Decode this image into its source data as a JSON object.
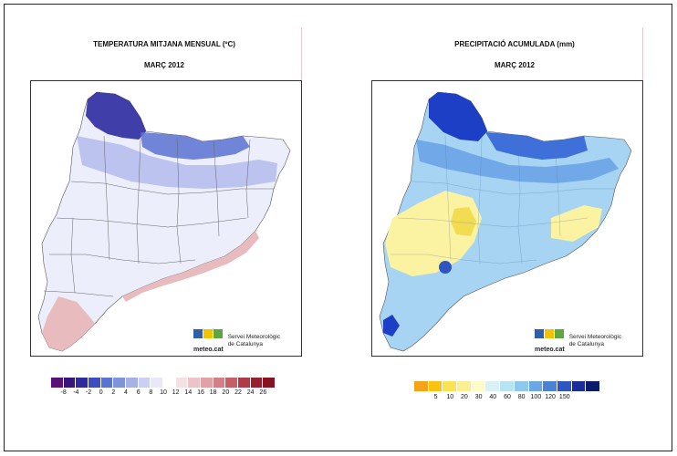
{
  "panels": [
    {
      "id": "temperature",
      "title": "TEMPERATURA MITJANA MENSUAL (ºC)",
      "subtitle": "MARÇ 2012",
      "legend_colors": [
        "#5b1076",
        "#35147f",
        "#2d2aa0",
        "#3c4cc1",
        "#5a72d1",
        "#7f93dc",
        "#a7b1e8",
        "#cbd0f3",
        "#e7e8fa",
        "#ffffff",
        "#f5e1e3",
        "#ecc3c6",
        "#e1a2a6",
        "#d47f86",
        "#c55e67",
        "#b03a47",
        "#9a1f2e",
        "#861320"
      ],
      "legend_ticks": [
        "-8",
        "-4",
        "-2",
        "0",
        "2",
        "4",
        "6",
        "8",
        "10",
        "12",
        "14",
        "16",
        "18",
        "20",
        "22",
        "24",
        "26"
      ],
      "map_colors": {
        "cold": "#3c3fb0",
        "mid": "#8088d4",
        "light": "#cfd3f1",
        "pale": "#eceefb",
        "warm": "#e8bcbf"
      }
    },
    {
      "id": "precipitation",
      "title": "PRECIPITACIÓ ACUMULADA (mm)",
      "subtitle": "MARÇ 2012",
      "legend_colors": [
        "#f7a21b",
        "#f9c411",
        "#fbe253",
        "#fbf08f",
        "#fdfcc7",
        "#d9f1f6",
        "#b7e3f3",
        "#8ec8ee",
        "#6aa7e4",
        "#4b82d6",
        "#2f55c3",
        "#1b2c9c",
        "#0c1a6b"
      ],
      "legend_ticks": [
        "5",
        "10",
        "20",
        "30",
        "40",
        "60",
        "80",
        "100",
        "120",
        "150"
      ],
      "map_colors": {
        "wet": "#1c3fc6",
        "mid": "#5f9ae4",
        "light": "#a6d4f2",
        "dry": "#fbf2a2",
        "drier": "#f1dc52"
      }
    }
  ],
  "logo": {
    "word": "meteo.cat",
    "name_line1": "Servei Meteorològic",
    "name_line2": "de Catalunya",
    "colors": [
      "#2e5fa8",
      "#f4c300",
      "#5fa640",
      "#2e5fa8",
      "#f4c300"
    ]
  }
}
